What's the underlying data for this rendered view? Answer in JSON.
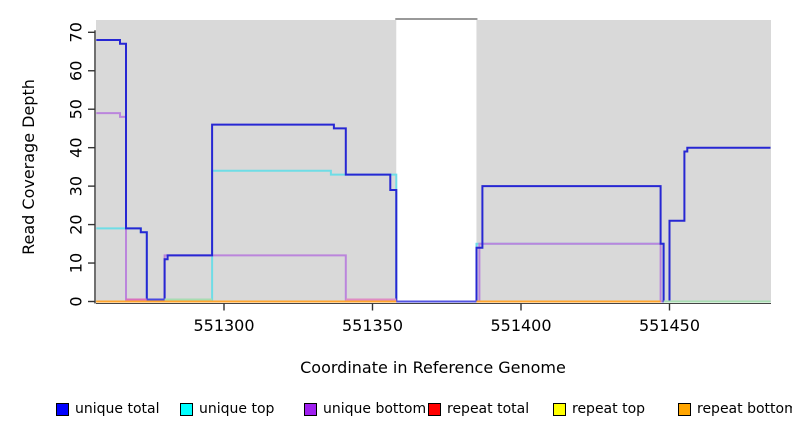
{
  "chart_data": {
    "type": "line",
    "title": "",
    "xlabel": "Coordinate in Reference Genome",
    "ylabel": "Read Coverage Depth",
    "x_ticks": [
      551300,
      551350,
      551400,
      551450
    ],
    "y_ticks": [
      0,
      10,
      20,
      30,
      40,
      50,
      60,
      70
    ],
    "xlim": [
      551257,
      551484
    ],
    "ylim": [
      0,
      73
    ],
    "grid": "off",
    "plot_background": "#d9d9d9",
    "masked_region": {
      "from": 551358,
      "to": 551385,
      "color": "#ffffff",
      "top_line_color": "#999999"
    },
    "series": [
      {
        "name": "unique total",
        "color": "#2727d3",
        "steps": [
          [
            551257,
            68
          ],
          [
            551265,
            67
          ],
          [
            551267,
            19
          ],
          [
            551272,
            18
          ],
          [
            551274,
            0
          ],
          [
            551280,
            11
          ],
          [
            551281,
            12
          ],
          [
            551296,
            46
          ],
          [
            551337,
            45
          ],
          [
            551341,
            33
          ],
          [
            551356,
            29
          ],
          [
            551358,
            0
          ],
          [
            551385,
            14
          ],
          [
            551387,
            30
          ],
          [
            551447,
            15
          ],
          [
            551448,
            0
          ],
          [
            551450,
            21
          ],
          [
            551455,
            39
          ],
          [
            551456,
            40
          ],
          [
            551484,
            40
          ]
        ]
      },
      {
        "name": "unique top",
        "color": "#6fdde6",
        "steps": [
          [
            551257,
            19
          ],
          [
            551272,
            18
          ],
          [
            551274,
            0
          ],
          [
            551296,
            34
          ],
          [
            551336,
            33
          ],
          [
            551358,
            0
          ],
          [
            551385,
            15
          ],
          [
            551448,
            0
          ],
          [
            551484,
            0
          ]
        ]
      },
      {
        "name": "unique bottom",
        "color": "#bb85dc",
        "steps": [
          [
            551257,
            49
          ],
          [
            551265,
            48
          ],
          [
            551267,
            0
          ],
          [
            551280,
            12
          ],
          [
            551341,
            0
          ],
          [
            551386,
            15
          ],
          [
            551447,
            0
          ],
          [
            551484,
            0
          ]
        ]
      },
      {
        "name": "repeat total",
        "color": "#ff0000",
        "steps": [
          [
            551257,
            0
          ],
          [
            551484,
            0
          ]
        ]
      },
      {
        "name": "repeat top",
        "color": "#ffff00",
        "steps": [
          [
            551257,
            0
          ],
          [
            551484,
            0
          ]
        ]
      },
      {
        "name": "repeat bottom",
        "color": "#ffa52e",
        "steps": [
          [
            551257,
            0
          ],
          [
            551447,
            0
          ]
        ]
      }
    ],
    "zero_overlays": [
      {
        "from": 551267,
        "to": 551274,
        "color": "#d970be",
        "dy": -2
      },
      {
        "from": 551274,
        "to": 551280,
        "color": "#4848e0",
        "dy": -2
      },
      {
        "from": 551280,
        "to": 551296,
        "color": "#a8dcb2",
        "dy": -2
      },
      {
        "from": 551341,
        "to": 551358,
        "color": "#de8cc4",
        "dy": -2
      },
      {
        "from": 551358,
        "to": 551385,
        "color": "#5353e2",
        "dy": 0
      },
      {
        "from": 551448,
        "to": 551484,
        "color": "#a8dcb2",
        "dy": 0
      }
    ]
  },
  "legend": {
    "items": [
      {
        "label": "unique total",
        "color": "#0000ff"
      },
      {
        "label": "unique top",
        "color": "#00ffff"
      },
      {
        "label": "unique bottom",
        "color": "#a020f0"
      },
      {
        "label": "repeat total",
        "color": "#ff0000"
      },
      {
        "label": "repeat top",
        "color": "#ffff00"
      },
      {
        "label": "repeat bottom",
        "color": "#ffa500"
      }
    ]
  }
}
